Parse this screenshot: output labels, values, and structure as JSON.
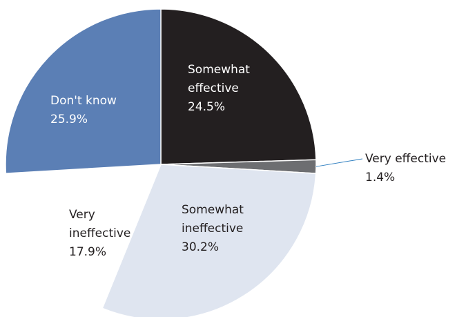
{
  "chart_data": {
    "type": "pie",
    "categories": [
      "Somewhat effective",
      "Very effective",
      "Somewhat ineffective",
      "Very ineffective",
      "Don't know"
    ],
    "values": [
      24.5,
      1.4,
      30.2,
      17.9,
      25.9
    ],
    "value_labels": [
      "24.5%",
      "1.4%",
      "30.2%",
      "17.9%",
      "25.9%"
    ],
    "colors": [
      "#231f20",
      "#6d6e71",
      "#dfe5f0",
      "#ffffff",
      "#5b7fb5"
    ]
  }
}
